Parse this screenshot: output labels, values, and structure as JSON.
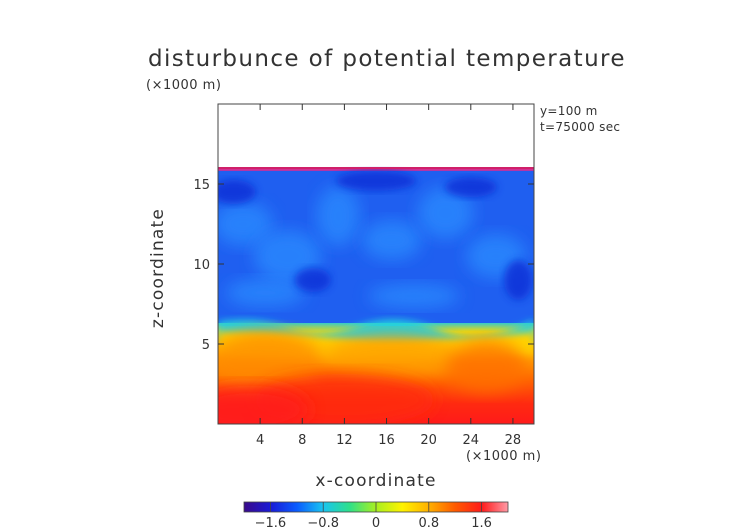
{
  "chart_data": {
    "type": "heatmap",
    "title": "disturbunce of potential temperature",
    "xlabel": "x-coordinate",
    "ylabel": "z-coordinate",
    "x_unit": "(×1000 m)",
    "y_unit": "(×1000 m)",
    "annotations": [
      "y=100 m",
      "t=75000 sec"
    ],
    "xlim": [
      0,
      30
    ],
    "ylim": [
      0,
      20
    ],
    "x_ticks": [
      4,
      8,
      12,
      16,
      20,
      24,
      28
    ],
    "y_ticks": [
      5,
      10,
      15
    ],
    "model_top": 16,
    "colorbar": {
      "range": [
        -2.0,
        2.0
      ],
      "tick_labels": [
        "−1.6",
        "−0.8",
        "0",
        "0.8",
        "1.6"
      ],
      "tick_values": [
        -1.6,
        -0.8,
        0,
        0.8,
        1.6
      ],
      "colors": [
        "#3a0a8a",
        "#1a1ad6",
        "#0a5cff",
        "#19c4f0",
        "#2ee08a",
        "#a8f020",
        "#fff200",
        "#ffb000",
        "#ff5a00",
        "#ff1a1a",
        "#ff9aa6"
      ]
    },
    "field_description_values": {
      "upper_layer_mean": -1.0,
      "lower_layer_mean": 1.3,
      "interface_height": 6.0
    }
  }
}
